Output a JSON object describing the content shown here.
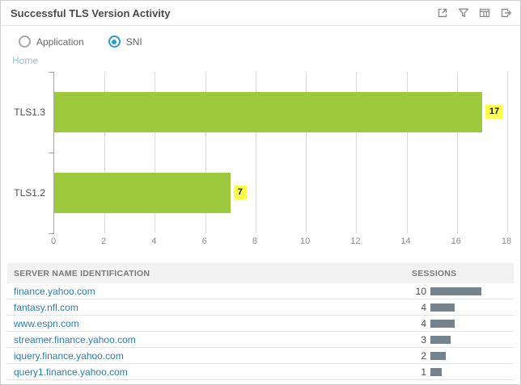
{
  "widget": {
    "title": "Successful TLS Version Activity",
    "toolbar": [
      {
        "name": "open-in-window-icon"
      },
      {
        "name": "filter-icon"
      },
      {
        "name": "table-view-icon"
      },
      {
        "name": "export-icon"
      }
    ]
  },
  "controls": {
    "radios": [
      {
        "label": "Application",
        "selected": false
      },
      {
        "label": "SNI",
        "selected": true
      }
    ],
    "breadcrumb": "Home"
  },
  "chart_data": {
    "type": "bar",
    "orientation": "horizontal",
    "categories": [
      "TLS1.3",
      "TLS1.2"
    ],
    "values": [
      17,
      7
    ],
    "xlim": [
      0,
      18
    ],
    "x_ticks": [
      0,
      2,
      4,
      6,
      8,
      10,
      12,
      14,
      16,
      18
    ],
    "grid": true,
    "bar_color": "#9cca3c",
    "value_label_bg": "#ffff4d"
  },
  "table": {
    "columns": [
      "SERVER NAME IDENTIFICATION",
      "SESSIONS"
    ],
    "rows": [
      {
        "server_name": "finance.yahoo.com",
        "sessions": 10
      },
      {
        "server_name": "fantasy.nfl.com",
        "sessions": 4
      },
      {
        "server_name": "www.espn.com",
        "sessions": 4
      },
      {
        "server_name": "streamer.finance.yahoo.com",
        "sessions": 3
      },
      {
        "server_name": "iquery.finance.yahoo.com",
        "sessions": 2
      },
      {
        "server_name": "query1.finance.yahoo.com",
        "sessions": 1
      }
    ],
    "session_bar_color": "#75838f",
    "link_color": "#2c7cb4"
  }
}
